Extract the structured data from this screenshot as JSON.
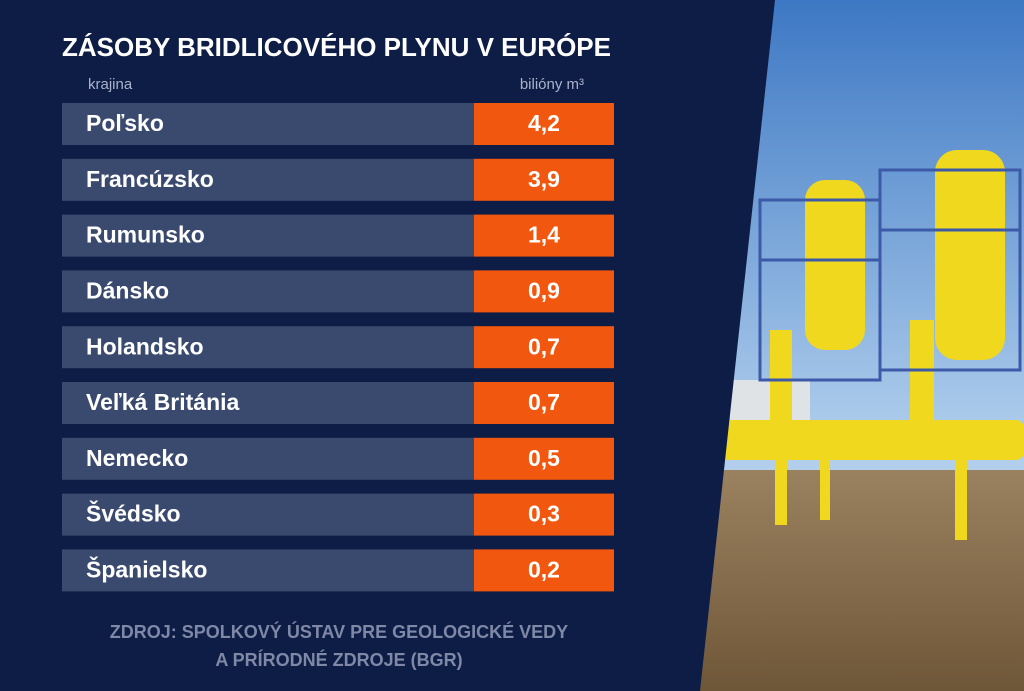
{
  "header": {
    "title": "ZÁSOBY BRIDLICOVÉHO PLYNU V EURÓPE"
  },
  "table": {
    "columns": [
      "krajina",
      "bilióny m³"
    ],
    "rows": [
      [
        "Poľsko",
        "4,2"
      ],
      [
        "Francúzsko",
        "3,9"
      ],
      [
        "Rumunsko",
        "1,4"
      ],
      [
        "Dánsko",
        "0,9"
      ],
      [
        "Holandsko",
        "0,7"
      ],
      [
        "Veľká Británia",
        "0,7"
      ],
      [
        "Nemecko",
        "0,5"
      ],
      [
        "Švédsko",
        "0,3"
      ],
      [
        "Španielsko",
        "0,2"
      ]
    ]
  },
  "source": {
    "lines": [
      "ZDROJ: SPOLKOVÝ ÚSTAV PRE GEOLOGICKÉ VEDY",
      "A PRÍRODNÉ ZDROJE (BGR)"
    ]
  }
}
